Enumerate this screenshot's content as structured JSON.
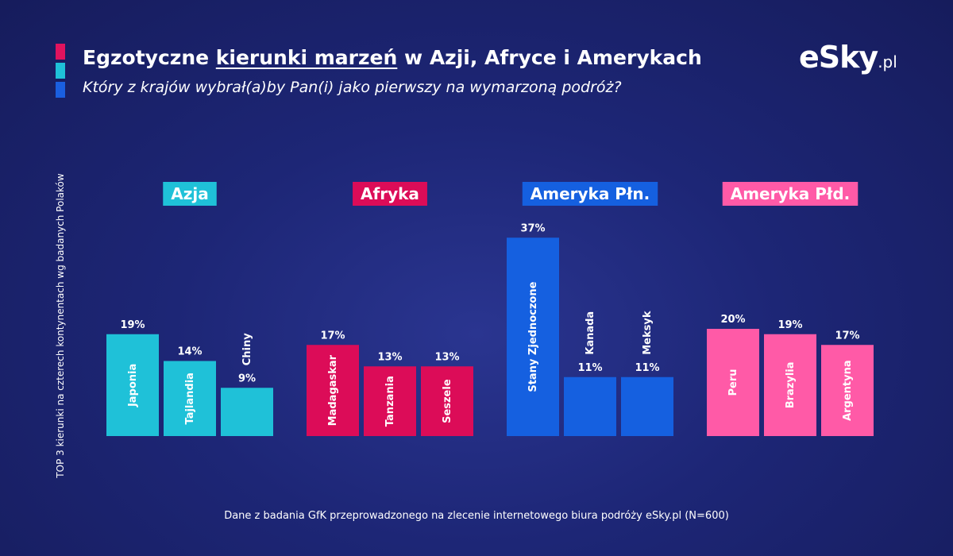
{
  "header": {
    "title_pre": "Egzotyczne ",
    "title_underlined": "kierunki marzeń",
    "title_post": " w Azji, Afryce i Amerykach",
    "subtitle": "Który z krajów wybrał(a)by Pan(i) jako pierwszy na wymarzoną podróż?"
  },
  "logo": {
    "main": "eSky",
    "tld": ".pl"
  },
  "accent_colors": [
    "#e0135e",
    "#1fc1d8",
    "#1a5fe0"
  ],
  "footnote": "Dane z badania GfK przeprowadzonego na zlecenie internetowego biura podróży eSky.pl (N=600)",
  "chart_data": {
    "type": "bar",
    "title": "Egzotyczne kierunki marzeń w Azji, Afryce i Amerykach",
    "ylabel": "TOP 3 kierunki na czterech kontynentach wg badanych Polaków",
    "ylim": [
      0,
      40
    ],
    "value_suffix": "%",
    "groups": [
      {
        "name": "Azja",
        "color": "#1fc1d8",
        "categories": [
          "Japonia",
          "Tajlandia",
          "Chiny"
        ],
        "values": [
          19,
          14,
          9
        ]
      },
      {
        "name": "Afryka",
        "color": "#dc0c58",
        "categories": [
          "Madagaskar",
          "Tanzania",
          "Seszele"
        ],
        "values": [
          17,
          13,
          13
        ]
      },
      {
        "name": "Ameryka Płn.",
        "color": "#1560e0",
        "categories": [
          "Stany Zjednoczone",
          "Kanada",
          "Meksyk"
        ],
        "values": [
          37,
          11,
          11
        ]
      },
      {
        "name": "Ameryka Płd.",
        "color": "#ff5aa7",
        "categories": [
          "Peru",
          "Brazylia",
          "Argentyna"
        ],
        "values": [
          20,
          19,
          17
        ]
      }
    ]
  }
}
